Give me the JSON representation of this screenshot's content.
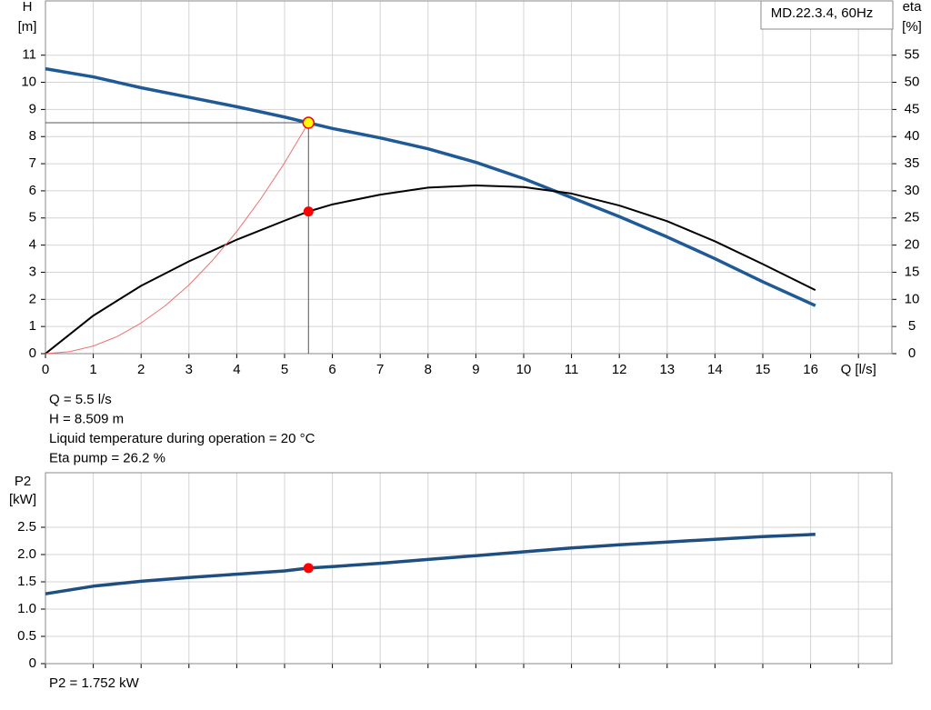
{
  "chart_data": [
    {
      "type": "line",
      "legend_label": "MD.22.3.4, 60Hz",
      "ylabel": "H",
      "yunit": "[m]",
      "y2label": "eta",
      "y2unit": "[%]",
      "x": [
        0,
        1,
        2,
        3,
        4,
        5,
        5.5,
        6,
        7,
        8,
        9,
        10,
        11,
        12,
        13,
        14,
        15,
        16.1
      ],
      "xlim": [
        0,
        17.7
      ],
      "xticks": [
        0,
        1,
        2,
        3,
        4,
        5,
        6,
        7,
        8,
        9,
        10,
        11,
        12,
        13,
        14,
        15,
        16,
        {
          "value": 17,
          "label": "Q [l/s]"
        }
      ],
      "ylim": [
        0,
        13
      ],
      "yticks": [
        0,
        1,
        2,
        3,
        4,
        5,
        6,
        7,
        8,
        9,
        10,
        11
      ],
      "y2lim": [
        0,
        65
      ],
      "y2ticks": [
        0,
        5,
        10,
        15,
        20,
        25,
        30,
        35,
        40,
        45,
        50,
        55
      ],
      "grid": true,
      "series": [
        {
          "color": "#1f5a96",
          "values": [
            10.5,
            10.2,
            9.8,
            9.45,
            9.1,
            8.72,
            8.509,
            8.3,
            7.95,
            7.55,
            7.05,
            6.45,
            5.75,
            5.05,
            4.3,
            3.5,
            2.65,
            1.77
          ]
        },
        {
          "color": "#000000",
          "axis": "y2",
          "values": [
            0,
            7,
            12.5,
            17,
            21,
            24.5,
            26.2,
            27.5,
            29.3,
            30.6,
            31,
            30.7,
            29.5,
            27.3,
            24.4,
            20.7,
            16.5,
            11.7
          ]
        },
        {
          "color": "#f07070",
          "x": [
            0,
            0.5,
            1,
            1.5,
            2,
            2.5,
            3,
            3.5,
            4,
            4.5,
            5,
            5.5
          ],
          "values": [
            0,
            0.07,
            0.28,
            0.63,
            1.13,
            1.76,
            2.53,
            3.45,
            4.5,
            5.7,
            7.03,
            8.509
          ]
        }
      ],
      "duty_point": {
        "x": 5.5,
        "y": 8.509,
        "y2": 26.2
      },
      "annotations": [
        "Q = 5.5 l/s",
        "H = 8.509 m",
        "Liquid temperature during operation = 20 °C",
        "Eta pump = 26.2 %"
      ]
    },
    {
      "type": "line",
      "ylabel": "P2",
      "yunit": "[kW]",
      "x": [
        0,
        1,
        2,
        3,
        4,
        5,
        5.5,
        6,
        7,
        8,
        9,
        10,
        11,
        12,
        13,
        14,
        15,
        16.1
      ],
      "xlim": [
        0,
        17.7
      ],
      "xticks": [
        0,
        1,
        2,
        3,
        4,
        5,
        6,
        7,
        8,
        9,
        10,
        11,
        12,
        13,
        14,
        15,
        16,
        17
      ],
      "ylim": [
        0,
        3.5
      ],
      "yticks": [
        0,
        0.5,
        {
          "value": 1,
          "label": "1.0"
        },
        1.5,
        {
          "value": 2,
          "label": "2.0"
        },
        2.5
      ],
      "grid": true,
      "series": [
        {
          "color": "#1f4f80",
          "values": [
            1.28,
            1.42,
            1.51,
            1.58,
            1.64,
            1.7,
            1.752,
            1.78,
            1.84,
            1.91,
            1.98,
            2.05,
            2.12,
            2.18,
            2.23,
            2.28,
            2.33,
            2.37
          ]
        }
      ],
      "duty_point": {
        "x": 5.5,
        "y": 1.752
      },
      "annotations": [
        "P2 = 1.752 kW"
      ]
    }
  ]
}
